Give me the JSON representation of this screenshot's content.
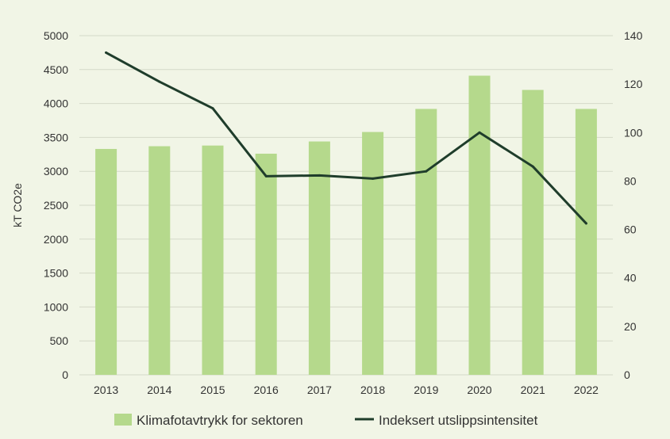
{
  "chart_data": {
    "type": "bar",
    "categories": [
      "2013",
      "2014",
      "2015",
      "2016",
      "2017",
      "2018",
      "2019",
      "2020",
      "2021",
      "2022"
    ],
    "series": [
      {
        "name": "Klimafotavtrykk for sektoren",
        "type": "bar",
        "axis": "left",
        "color": "#b5d98c",
        "values": [
          3330,
          3370,
          3380,
          3260,
          3440,
          3580,
          3920,
          4410,
          4200,
          3920
        ]
      },
      {
        "name": "Indeksert utslippsintensitet",
        "type": "line",
        "axis": "right",
        "color": "#1f3d2b",
        "values": [
          133,
          121,
          110,
          82,
          82.3,
          81,
          84,
          100,
          86,
          62.5
        ]
      }
    ],
    "ylabel": "kT CO2e",
    "ylim": [
      0,
      5000
    ],
    "yticks": [
      "0",
      "500",
      "1000",
      "1500",
      "2000",
      "2500",
      "3000",
      "3500",
      "4000",
      "4500",
      "5000"
    ],
    "y2lim": [
      0,
      140
    ],
    "y2ticks": [
      "0",
      "20",
      "40",
      "60",
      "80",
      "100",
      "120",
      "140"
    ],
    "grid": true,
    "legend_position": "bottom"
  }
}
